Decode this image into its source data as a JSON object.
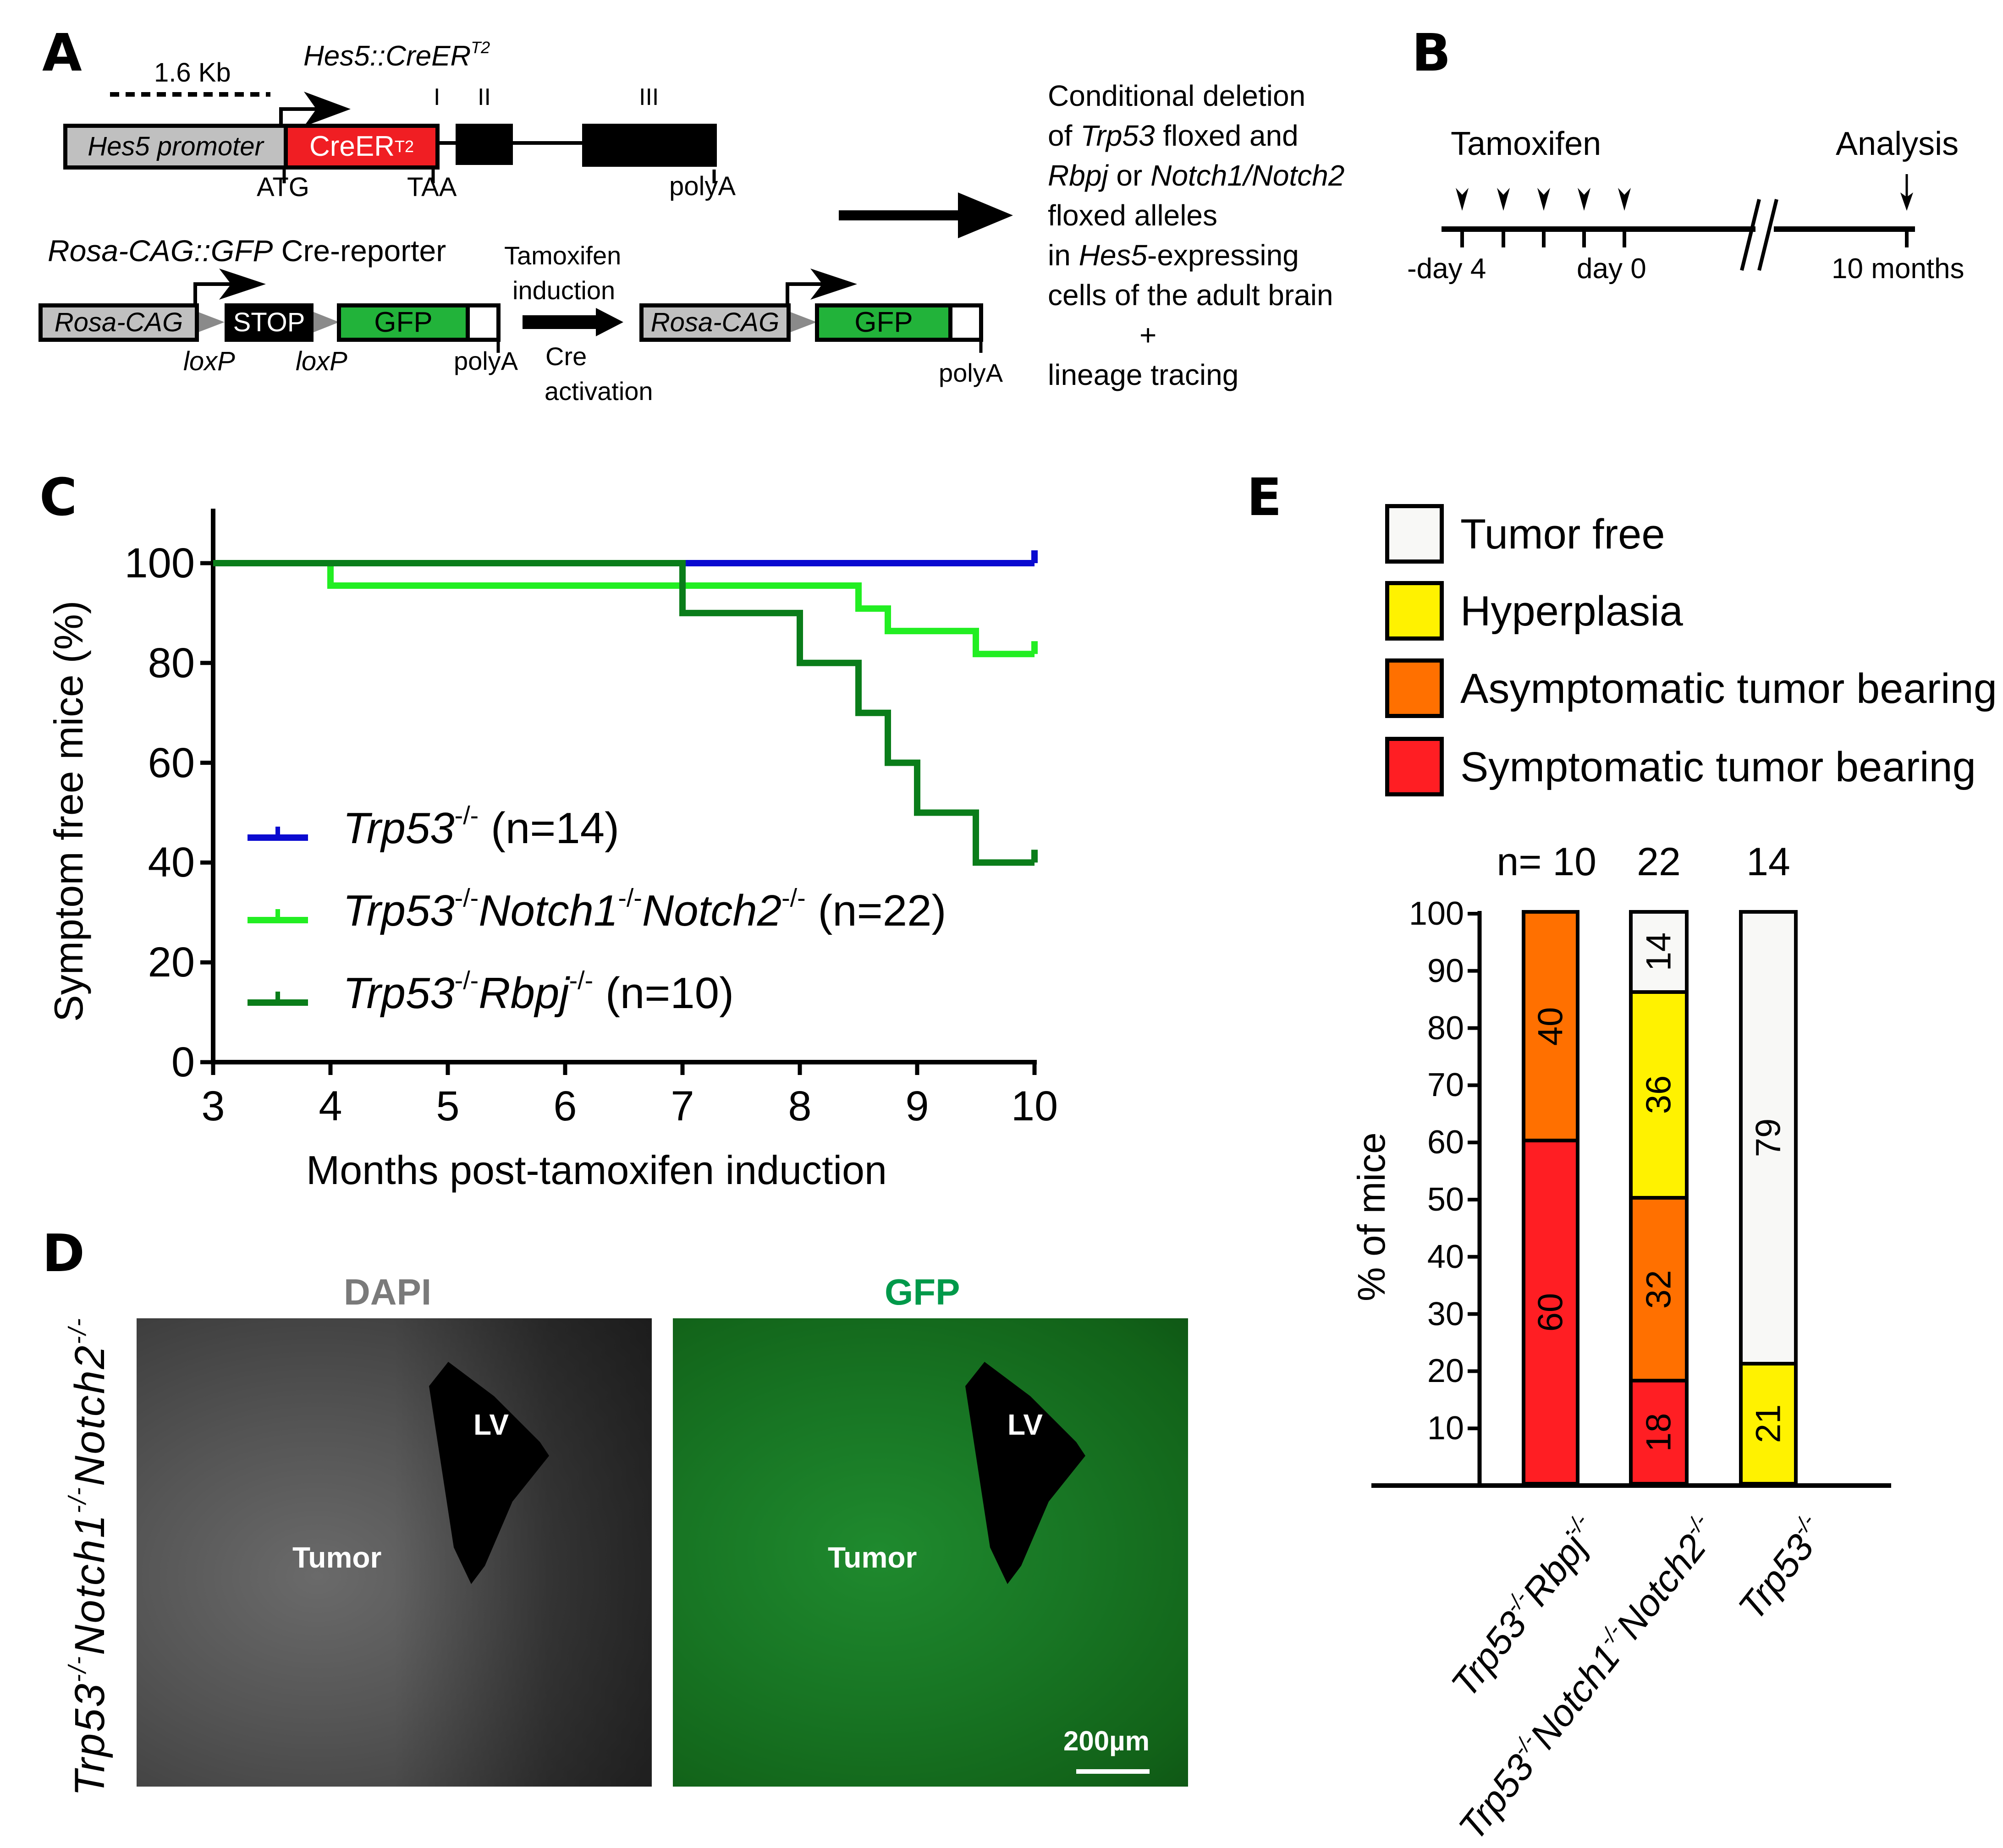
{
  "colors": {
    "creer": "#f01e23",
    "promoter_gray": "#c0c0c0",
    "gfp_green": "#22b33a",
    "curve_trp53": "#0a0ad0",
    "curve_notch": "#22ee22",
    "curve_rbpj": "#0a7d1a",
    "tumor_free": "#f8f8f6",
    "hyperplasia": "#fff200",
    "asymptomatic": "#ff7000",
    "symptomatic": "#ff1e23",
    "dapi_title": "#7a7a7a",
    "gfp_title": "#00994a"
  },
  "panelA": {
    "letter": "A",
    "construct_title": "Hes5::CreER",
    "construct_title_sup": "T2",
    "scale_label": "1.6 Kb",
    "exon_labels": [
      "I",
      "II",
      "III"
    ],
    "promoter_label": "Hes5 promoter",
    "creer_label": "CreER",
    "creer_sup": "T2",
    "atg": "ATG",
    "taa": "TAA",
    "polyA": "polyA",
    "reporter_title_italic": "Rosa-CAG::GFP",
    "reporter_title_rest": " Cre-reporter",
    "rosa_label": "Rosa-CAG",
    "stop_label": "STOP",
    "gfp_label": "GFP",
    "loxp": "loxP",
    "induction_top_1": "Tamoxifen",
    "induction_top_2": "induction",
    "induction_bottom_1": "Cre",
    "induction_bottom_2": "activation",
    "description": {
      "line1": "Conditional deletion",
      "line2_pre": "of ",
      "line2_it": "Trp53",
      "line2_post": " floxed and",
      "line3_it1": "Rbpj",
      "line3_mid": " or ",
      "line3_it2": "Notch1/Notch2",
      "line4": "floxed alleles",
      "line5_pre": "in ",
      "line5_it": "Hes5",
      "line5_post": "-expressing",
      "line6": "cells of the adult brain",
      "plus": "+",
      "line7": "lineage tracing"
    }
  },
  "panelB": {
    "letter": "B",
    "tamoxifen": "Tamoxifen",
    "analysis": "Analysis",
    "start": "-day 4",
    "day0": "day 0",
    "end": "10 months"
  },
  "panelC": {
    "letter": "C"
  },
  "panelD": {
    "letter": "D",
    "genotype_parts": [
      "Trp53",
      "-/-",
      "Notch1",
      "-/-",
      "Notch2",
      "-/-"
    ],
    "dapi_title": "DAPI",
    "gfp_title": "GFP",
    "lv_label": "LV",
    "tumor_label": "Tumor",
    "scale_bar": "200µm"
  },
  "panelE": {
    "letter": "E",
    "n_prefix": "n= ",
    "legend": [
      {
        "label": "Tumor free",
        "color": "#f8f8f6"
      },
      {
        "label": "Hyperplasia",
        "color": "#fff200"
      },
      {
        "label": "Asymptomatic tumor bearing",
        "color": "#ff7000"
      },
      {
        "label": "Symptomatic tumor bearing",
        "color": "#ff1e23"
      }
    ]
  },
  "chart_data": [
    {
      "type": "line",
      "subtype": "kaplan-meier step",
      "title": "",
      "xlabel": "Months post-tamoxifen induction",
      "ylabel": "Symptom free mice (%)",
      "xlim": [
        3,
        10
      ],
      "ylim": [
        0,
        110
      ],
      "xticks": [
        3,
        4,
        5,
        6,
        7,
        8,
        9,
        10
      ],
      "yticks": [
        0,
        20,
        40,
        60,
        80,
        100
      ],
      "grid": false,
      "legend_position": "lower left inside",
      "series": [
        {
          "name": "Trp53-/- (n=14)",
          "name_parts": [
            "Trp53",
            "-/-",
            "",
            "",
            "",
            "",
            " (n=14)"
          ],
          "color": "#0a0ad0",
          "x": [
            3,
            10
          ],
          "y": [
            100,
            100
          ]
        },
        {
          "name": "Trp53-/-Notch1-/-Notch2-/- (n=22)",
          "name_parts": [
            "Trp53",
            "-/-",
            "Notch1",
            "-/-",
            "Notch2",
            "-/-",
            " (n=22)"
          ],
          "color": "#22ee22",
          "x": [
            3,
            4,
            8.5,
            8.75,
            9.5,
            10
          ],
          "y": [
            100,
            95.5,
            90.9,
            86.4,
            81.8,
            81.8
          ]
        },
        {
          "name": "Trp53-/-Rbpj-/- (n=10)",
          "name_parts": [
            "Trp53",
            "-/-",
            "Rbpj",
            "-/-",
            "",
            "",
            " (n=10)"
          ],
          "color": "#0a7d1a",
          "x": [
            3,
            7,
            8,
            8.5,
            8.75,
            9,
            9.5,
            10
          ],
          "y": [
            100,
            90,
            80,
            70,
            60,
            50,
            40,
            40
          ]
        }
      ]
    },
    {
      "type": "bar",
      "subtype": "stacked percent",
      "title": "",
      "xlabel": "",
      "ylabel": "% of mice",
      "ylim": [
        0,
        100
      ],
      "yticks": [
        10,
        20,
        30,
        40,
        50,
        60,
        70,
        80,
        90,
        100
      ],
      "categories": [
        "Trp53-/-Rbpj-/-",
        "Trp53-/-Notch1-/-Notch2-/-",
        "Trp53-/-"
      ],
      "n": [
        10,
        22,
        14
      ],
      "series": [
        {
          "name": "Symptomatic tumor bearing",
          "color": "#ff1e23",
          "values": [
            60,
            18,
            0
          ]
        },
        {
          "name": "Asymptomatic tumor bearing",
          "color": "#ff7000",
          "values": [
            40,
            32,
            0
          ]
        },
        {
          "name": "Hyperplasia",
          "color": "#fff200",
          "values": [
            0,
            36,
            21
          ]
        },
        {
          "name": "Tumor free",
          "color": "#f8f8f6",
          "values": [
            0,
            14,
            79
          ]
        }
      ]
    }
  ]
}
